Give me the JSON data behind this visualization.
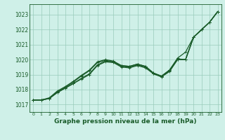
{
  "xlabel": "Graphe pression niveau de la mer (hPa)",
  "bg_color": "#cff0e8",
  "grid_color": "#99ccbb",
  "line_color": "#1a5c2a",
  "xlim": [
    -0.5,
    23.5
  ],
  "ylim": [
    1016.5,
    1023.7
  ],
  "yticks": [
    1017,
    1018,
    1019,
    1020,
    1021,
    1022,
    1023
  ],
  "xticks": [
    0,
    1,
    2,
    3,
    4,
    5,
    6,
    7,
    8,
    9,
    10,
    11,
    12,
    13,
    14,
    15,
    16,
    17,
    18,
    19,
    20,
    21,
    22,
    23
  ],
  "series": [
    [
      1017.3,
      1017.3,
      1017.4,
      1017.8,
      1018.1,
      1018.4,
      1018.75,
      1019.05,
      1019.65,
      1019.9,
      1019.85,
      1019.6,
      1019.55,
      1019.7,
      1019.55,
      1019.1,
      1018.9,
      1019.3,
      1020.05,
      1020.0,
      1021.5,
      1022.0,
      1022.5,
      1023.2
    ],
    [
      1017.3,
      1017.3,
      1017.4,
      1017.85,
      1018.15,
      1018.5,
      1018.9,
      1019.25,
      1019.8,
      1019.95,
      1019.85,
      1019.55,
      1019.5,
      1019.65,
      1019.5,
      1019.05,
      1018.85,
      1019.25,
      1020.0,
      1020.0,
      1021.5,
      1022.0,
      1022.5,
      1023.2
    ],
    [
      1017.3,
      1017.3,
      1017.45,
      1017.9,
      1018.2,
      1018.55,
      1018.95,
      1019.3,
      1019.85,
      1020.0,
      1019.9,
      1019.6,
      1019.55,
      1019.7,
      1019.55,
      1019.1,
      1018.9,
      1019.3,
      1020.1,
      1020.5,
      1021.5,
      1022.0,
      1022.5,
      1023.2
    ],
    [
      1017.3,
      1017.3,
      1017.4,
      1017.8,
      1018.1,
      1018.4,
      1018.7,
      1019.0,
      1019.6,
      1019.85,
      1019.8,
      1019.5,
      1019.45,
      1019.6,
      1019.45,
      1019.05,
      1018.85,
      1019.2,
      1020.0,
      1020.0,
      1021.5,
      1022.0,
      1022.5,
      1023.2
    ]
  ],
  "xlabel_fontsize": 6.5,
  "xlabel_fontweight": "bold",
  "ytick_fontsize": 5.5,
  "xtick_fontsize": 4.5,
  "marker_size": 2.5,
  "linewidth": 0.9
}
